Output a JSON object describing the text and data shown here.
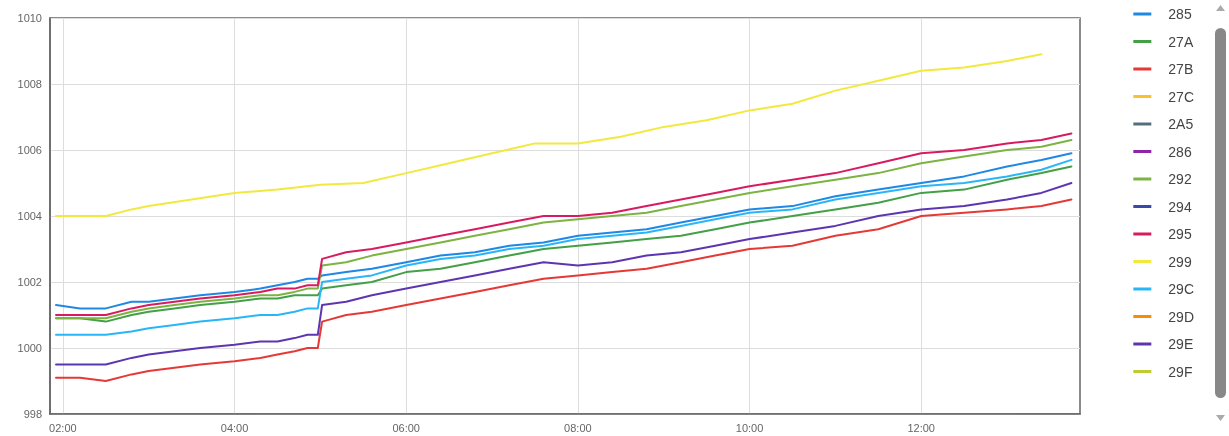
{
  "chart_data": {
    "type": "line",
    "x": [
      1.92,
      2.2,
      2.5,
      2.8,
      3.0,
      3.3,
      3.6,
      4.0,
      4.3,
      4.5,
      4.7,
      4.85,
      4.97,
      5.02,
      5.3,
      5.6,
      6.0,
      6.4,
      6.8,
      7.2,
      7.6,
      8.0,
      8.4,
      8.8,
      9.2,
      9.6,
      10.0,
      10.5,
      11.0,
      11.5,
      12.0,
      12.5,
      13.0,
      13.4,
      13.75
    ],
    "xlim": [
      1.85,
      13.85
    ],
    "xticks": [
      {
        "value": 2,
        "label": "02:00"
      },
      {
        "value": 4,
        "label": "04:00"
      },
      {
        "value": 6,
        "label": "06:00"
      },
      {
        "value": 8,
        "label": "08:00"
      },
      {
        "value": 10,
        "label": "10:00"
      },
      {
        "value": 12,
        "label": "12:00"
      }
    ],
    "ylim": [
      998,
      1010
    ],
    "yticks": [
      998,
      1000,
      1002,
      1004,
      1006,
      1008,
      1010
    ],
    "grid": true,
    "legend": "right",
    "marker": "none",
    "line_style": "solid",
    "series": [
      {
        "name": "285",
        "color": "#1e88e5",
        "values": [
          1001.3,
          1001.2,
          1001.2,
          1001.4,
          1001.4,
          1001.5,
          1001.6,
          1001.7,
          1001.8,
          1001.9,
          1002.0,
          1002.1,
          1002.1,
          1002.2,
          1002.3,
          1002.4,
          1002.6,
          1002.8,
          1002.9,
          1003.1,
          1003.2,
          1003.4,
          1003.5,
          1003.6,
          1003.8,
          1004.0,
          1004.2,
          1004.3,
          1004.6,
          1004.8,
          1005.0,
          1005.2,
          1005.5,
          1005.7,
          1005.9
        ]
      },
      {
        "name": "27A",
        "color": "#43a047",
        "values": [
          1000.9,
          1000.9,
          1000.8,
          1001.0,
          1001.1,
          1001.2,
          1001.3,
          1001.4,
          1001.5,
          1001.5,
          1001.6,
          1001.6,
          1001.6,
          1001.8,
          1001.9,
          1002.0,
          1002.3,
          1002.4,
          1002.6,
          1002.8,
          1003.0,
          1003.1,
          1003.2,
          1003.3,
          1003.4,
          1003.6,
          1003.8,
          1004.0,
          1004.2,
          1004.4,
          1004.7,
          1004.8,
          1005.1,
          1005.3,
          1005.5
        ]
      },
      {
        "name": "27B",
        "color": "#e53935",
        "values": [
          999.1,
          999.1,
          999.0,
          999.2,
          999.3,
          999.4,
          999.5,
          999.6,
          999.7,
          999.8,
          999.9,
          1000.0,
          1000.0,
          1000.8,
          1001.0,
          1001.1,
          1001.3,
          1001.5,
          1001.7,
          1001.9,
          1002.1,
          1002.2,
          1002.3,
          1002.4,
          1002.6,
          1002.8,
          1003.0,
          1003.1,
          1003.4,
          1003.6,
          1004.0,
          1004.1,
          1004.2,
          1004.3,
          1004.5
        ]
      },
      {
        "name": "27C",
        "color": "#fbc02d",
        "values": [
          null,
          null,
          null,
          null,
          null,
          null,
          null,
          null,
          null,
          null,
          null,
          null,
          null,
          null,
          null,
          null,
          null,
          null,
          null,
          null,
          null,
          null,
          null,
          null,
          null,
          null,
          null,
          null,
          null,
          null,
          null,
          null,
          null,
          null,
          null
        ]
      },
      {
        "name": "2A5",
        "color": "#546e7a",
        "values": [
          null,
          null,
          null,
          null,
          null,
          null,
          null,
          null,
          null,
          null,
          null,
          null,
          null,
          null,
          null,
          null,
          null,
          null,
          null,
          null,
          null,
          null,
          null,
          null,
          null,
          null,
          null,
          null,
          null,
          null,
          null,
          null,
          null,
          null,
          null
        ]
      },
      {
        "name": "286",
        "color": "#8e24aa",
        "values": [
          null,
          null,
          null,
          null,
          null,
          null,
          null,
          null,
          null,
          null,
          null,
          null,
          null,
          null,
          null,
          null,
          null,
          null,
          null,
          null,
          null,
          null,
          null,
          null,
          null,
          null,
          null,
          null,
          null,
          null,
          null,
          null,
          null,
          null,
          null
        ]
      },
      {
        "name": "292",
        "color": "#7cb342",
        "values": [
          1000.9,
          1000.9,
          1000.9,
          1001.1,
          1001.2,
          1001.3,
          1001.4,
          1001.5,
          1001.6,
          1001.6,
          1001.7,
          1001.8,
          1001.8,
          1002.5,
          1002.6,
          1002.8,
          1003.0,
          1003.2,
          1003.4,
          1003.6,
          1003.8,
          1003.9,
          1004.0,
          1004.1,
          1004.3,
          1004.5,
          1004.7,
          1004.9,
          1005.1,
          1005.3,
          1005.6,
          1005.8,
          1006.0,
          1006.1,
          1006.3
        ]
      },
      {
        "name": "294",
        "color": "#3949ab",
        "values": [
          null,
          null,
          null,
          null,
          null,
          null,
          null,
          null,
          null,
          null,
          null,
          null,
          null,
          null,
          null,
          null,
          null,
          null,
          null,
          null,
          null,
          null,
          null,
          null,
          null,
          null,
          null,
          null,
          null,
          null,
          null,
          null,
          null,
          null,
          null
        ]
      },
      {
        "name": "295",
        "color": "#d81b60",
        "values": [
          1001.0,
          1001.0,
          1001.0,
          1001.2,
          1001.3,
          1001.4,
          1001.5,
          1001.6,
          1001.7,
          1001.8,
          1001.8,
          1001.9,
          1001.9,
          1002.7,
          1002.9,
          1003.0,
          1003.2,
          1003.4,
          1003.6,
          1003.8,
          1004.0,
          1004.0,
          1004.1,
          1004.3,
          1004.5,
          1004.7,
          1004.9,
          1005.1,
          1005.3,
          1005.6,
          1005.9,
          1006.0,
          1006.2,
          1006.3,
          1006.5
        ]
      },
      {
        "name": "299",
        "color": "#f2e93e",
        "x": [
          1.92,
          2.2,
          2.5,
          2.8,
          3.0,
          3.5,
          4.0,
          4.5,
          5.0,
          5.5,
          6.0,
          6.5,
          7.0,
          7.5,
          8.0,
          8.5,
          9.0,
          9.5,
          10.0,
          10.5,
          11.0,
          11.5,
          12.0,
          12.5,
          13.0,
          13.4
        ],
        "values": [
          1004.0,
          1004.0,
          1004.0,
          1004.2,
          1004.3,
          1004.5,
          1004.7,
          1004.8,
          1004.95,
          1005.0,
          1005.3,
          1005.6,
          1005.9,
          1006.2,
          1006.2,
          1006.4,
          1006.7,
          1006.9,
          1007.2,
          1007.4,
          1007.8,
          1008.1,
          1008.4,
          1008.5,
          1008.7,
          1008.9
        ]
      },
      {
        "name": "29C",
        "color": "#29b6f6",
        "values": [
          1000.4,
          1000.4,
          1000.4,
          1000.5,
          1000.6,
          1000.7,
          1000.8,
          1000.9,
          1001.0,
          1001.0,
          1001.1,
          1001.2,
          1001.2,
          1002.0,
          1002.1,
          1002.2,
          1002.5,
          1002.7,
          1002.8,
          1003.0,
          1003.1,
          1003.3,
          1003.4,
          1003.5,
          1003.7,
          1003.9,
          1004.1,
          1004.2,
          1004.5,
          1004.7,
          1004.9,
          1005.0,
          1005.2,
          1005.4,
          1005.7
        ]
      },
      {
        "name": "29D",
        "color": "#fb8c00",
        "values": [
          null,
          null,
          null,
          null,
          null,
          null,
          null,
          null,
          null,
          null,
          null,
          null,
          null,
          null,
          null,
          null,
          null,
          null,
          null,
          null,
          null,
          null,
          null,
          null,
          null,
          null,
          null,
          null,
          null,
          null,
          null,
          null,
          null,
          null,
          null
        ]
      },
      {
        "name": "29E",
        "color": "#5e35b1",
        "values": [
          999.5,
          999.5,
          999.5,
          999.7,
          999.8,
          999.9,
          1000.0,
          1000.1,
          1000.2,
          1000.2,
          1000.3,
          1000.4,
          1000.4,
          1001.3,
          1001.4,
          1001.6,
          1001.8,
          1002.0,
          1002.2,
          1002.4,
          1002.6,
          1002.5,
          1002.6,
          1002.8,
          1002.9,
          1003.1,
          1003.3,
          1003.5,
          1003.7,
          1004.0,
          1004.2,
          1004.3,
          1004.5,
          1004.7,
          1005.0
        ]
      },
      {
        "name": "29F",
        "color": "#c0ca33",
        "values": [
          null,
          null,
          null,
          null,
          null,
          null,
          null,
          null,
          null,
          null,
          null,
          null,
          null,
          null,
          null,
          null,
          null,
          null,
          null,
          null,
          null,
          null,
          null,
          null,
          null,
          null,
          null,
          null,
          null,
          null,
          null,
          null,
          null,
          null,
          null
        ]
      }
    ]
  }
}
